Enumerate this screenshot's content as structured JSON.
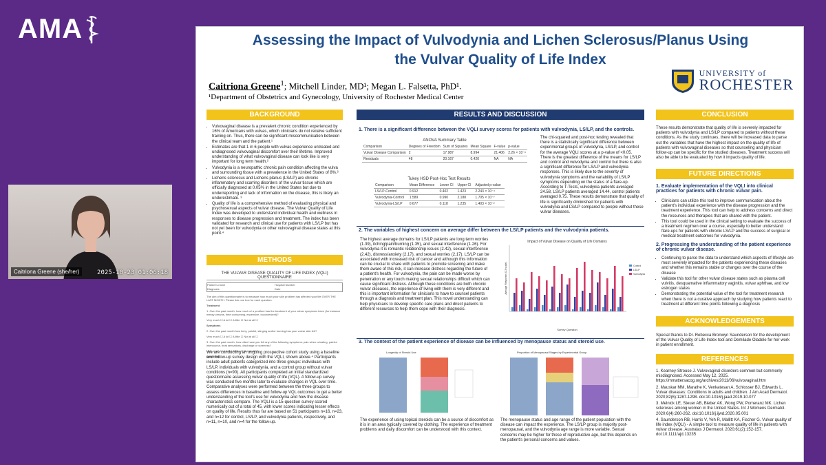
{
  "logo": {
    "text": "AMA"
  },
  "video": {
    "name": "Caitriona Greene (she/her)",
    "timestamp": "2025-10-23  01:06:18"
  },
  "poster": {
    "title_line1": "Assessing the Impact of Vulvodynia and Lichen Sclerosus/Planus Using",
    "title_line2": "the Vulvar Quality of Life Index",
    "author_main": "Caitriona Greene",
    "authors_rest": "; Mitchell Linder, MD¹; Megan L. Falsetta, PhD¹.",
    "affiliation": "¹Department of Obstetrics and Gynecology, University of Rochester Medical Center",
    "university_top": "UNIVERSITY of",
    "university_name": "ROCHESTER",
    "background": {
      "heading": "BACKGROUND",
      "bullets": [
        "Vulvovaginal disease is a prevalent chronic condition experienced by 16% of Americans with vulvas, which clinicians do not receive sufficient training on. Thus, there can be significant miscommunication between the clinical team and the patient.¹",
        "Estimates are that 1 in 6 people with vulvas experience untreated and undiagnosed vulvovaginal discomfort over their lifetime. Improved understanding of what vulvovaginal disease can look like is very important for long term health.²",
        "Vulvodynia is a neuropathic chronic pain condition affecting the vulva and surrounding tissue with a prevalence in the United States of 8%.²",
        "Lichens sclerosus and Lichens planus (LS/LP) are chronic inflammatory and scarring disorders of the vulvar tissue which are officially diagnosed at 0.05% in the United States but due to underreporting and lack of information on the disease, this is likely an underestimate. ³",
        "Quality of life is a comprehensive method of evaluating physical and psychosexual aspects of vulvar disease. The Vulvar Quality of Life Index was developed to understand individual health and wellness in responses to disease progression and treatment. The index has been validated for research and clinical use for patients with LS/LP but has not yet been for vulvodynia or other vulvovaginal disease states at this point.⁴"
      ]
    },
    "methods": {
      "heading": "METHODS",
      "form_title": "THE VULVAR DISEASE QUALITY OF LIFE INDEX (VQLI) QUESTIONNAIRE",
      "form_fields": [
        "Patient's name",
        "Hospital Number",
        "Diagnosis",
        "Date"
      ],
      "form_intro": "The aim of this questionnaire is to measure how much your skin problem has affected your life OVER THE LAST MONTH. Please tick one box for each question.",
      "form_sections": [
        "Treatment",
        "Symptoms",
        "Emotions"
      ],
      "form_q1": "1. Over the past month, how much of a problem has the treatment of your vulvar symptoms been (for instance messy creams, time consuming, expensive, inconvenient)?",
      "form_q2": "2. Over the past month how itchy, painful, stinging and/or burning has your vulvar skin felt?",
      "form_q3": "3. Over the past month, how often have you felt any of the following symptoms: pain when urinating, painful intercourse, heat sensations, discharge or soreness?",
      "form_options": "Very much ☐     A lot ☐     A little ☐     Not at all ☐",
      "text": "We are conducting an ongoing prospective cohort study using a baseline and follow-up survey design with the VQLI, shown above.⁴ Participants include adult patients categorized into three groups: individuals with LS/LP, individuals with vulvodynia, and a control group without vulvar conditions (n=90). All participants completed an initial standardized questionnaire assessing vulvar quality of life (VQL). A follow-up survey was conducted five months later to evaluate changes in VQL over time. Comparative analyses were performed between the three groups to assess differences in baseline and follow-up VQL outcomes to get a better understanding of the tool's use for vulvodynia and how the disease characteristics compare. The VQLI is a 15-question survey scored numerically out of a total of 45, with lower scores indicating lesser effects on quality of life. Results thus far are based on 51 participants n=16, n=23, and n=12 for control, LS/LP, and vulvodynia patients, respectively, and n=11, n=10, and n=4 for the follow-up."
    },
    "results": {
      "heading": "RESULTS AND DISCUSSION",
      "h1": "1.  There is a significant difference between the VQLI survey scores for patients with vulvodynia, LS/LP, and the controls.",
      "anova_caption": "ANOVA Summary Table",
      "anova_headers": [
        "Comparison",
        "Degrees of Freedom",
        "Sum of Squares",
        "Mean Square",
        "F-value",
        "p-value"
      ],
      "anova_rows": [
        [
          "Vulvar Disease Comparison",
          "2",
          "17.987",
          "8.994",
          "21.406",
          "2.26 × 10⁻⁸"
        ],
        [
          "Residuals",
          "48",
          "20.167",
          "0.420",
          "NA",
          "NA"
        ]
      ],
      "tukey_caption": "Tukey HSD Post-Hoc Test Results",
      "tukey_headers": [
        "Comparison",
        "Mean Difference",
        "Lower CI",
        "Upper CI",
        "Adjusted p-value"
      ],
      "tukey_rows": [
        [
          "LS/LP-Control",
          "0.912",
          "0.402",
          "1.423",
          "2.243 × 10⁻⁴"
        ],
        [
          "Vulvodynia-Control",
          "1.589",
          "0.990",
          "2.188",
          "1.705 × 10⁻⁷"
        ],
        [
          "Vulvodynia-LS/LP",
          "0.677",
          "0.118",
          "1.235",
          "1.403 × 10⁻²"
        ]
      ],
      "text1": "The chi-squared and post-hoc testing revealed that there is a statistically significant difference between experimental groups of vulvodynia, LS/LP, and control for the average VQLI scores at a p-value of <0.05. There is the greatest difference of the means for LS/LP and control and vulvodynia and control but there is also a significant difference for LS/LP and vulvodynia responses. This is likely due to the severity of vulvodynia symptoms and the variability of LS/LP symptoms depending on the status of a flare-up. According to T-Tests, vulvodynia patients averaged 24.58, LS/LP patients averaged 14.44, control patients averaged 0.75. These results demonstrate that quality of life is significantly diminished for patients with vulvodynia and LS/LP compared to people without these vulvar diseases.",
      "h2": "2.  The variables of highest concern on average differ between the LS/LP patients and the vulvodynia patients.",
      "text2": "The highest average domains for LS/LP patients are long term worries (1.39), itching/pain/burning (1.35), and sexual interference (1.26). For vulvodynia it is romantic relationship issues (2.42), sexual interference (2.42), distress/anxiety (2.17), and sexual worries (2.17). LS/LP can be associated with increased risk of cancer and although this information can be crucial to share with patients to promote screening and make them aware of this risk, it can increase distress regarding the future of a patient's health. For vulvodynia, the pain can be made worse by penetration or any touch making sexual relationships difficult which can cause significant distress. Although these conditions are both chronic vulvar diseases, the experience of living with them is very different and this is important information for clinicians to have to counsel patients through a diagnosis and treatment plan. This novel understanding can help physicians to develop specific care plans and direct patients to different resources to help them cope with their diagnosis.",
      "chart1_title": "Impact of Vulvar Disease on Quality of Life Domains",
      "chart1_xlabel": "Survey Question",
      "chart1_ylabel": "Average Response (0-3 scale)",
      "chart1_legend": [
        "Control",
        "LS/LP",
        "Vulvodynia"
      ],
      "h3": "3.  The context of the patient experience of disease can be influenced by menopause status and steroid use.",
      "chart2_title": "Longevity of Steroid Use",
      "chart3_title": "Proportion of Menopausal Stages by Experimental Group",
      "text3a": "The experience of using topical steroids can be a source of discomfort as it is in an area typically covered by clothing. The experience of treatment problems and daily discomfort can be understood with this context.",
      "text3b": "The menopause status and age range of the patient population with the disease can impact the experience. The LS/LP group is majority post-menopausal, and the vulvodynia age range is more variable. Sexual concerns may be higher for those of reproductive age, but this depends on the patient's personal concerns and values."
    },
    "conclusion": {
      "heading": "CONCLUSION",
      "text": "These results demonstrate that quality of life is severely impacted for patients with vulvodynia and LS/LP compared to patients without these conditions. As the study continues, there will be increased data to parse out the variables that have the highest impact on the quality of life of patients with vulvovaginal diseases so that counseling and physician follow-up can be specific for the studied diseases. Treatment success will also be able to be evaluated by how it impacts quality of life."
    },
    "future": {
      "heading": "FUTURE DIRECTIONS",
      "h1": "1.  Evaluate implementation of the VQLI into clinical practices for patients with chronic vulvar pain.",
      "b1": [
        "Clinicians can utilize this tool to improve communication about the patient's individual experience with the disease progression and the treatment experience. This tool can help to address concerns and direct the resources and therapies that are shared with the patient.",
        "This tool could be used in the clinical setting to evaluate the success of a treatment regimen over a course, especially to better understand flare-ups for patients with chronic LS/LP and the success of surgical or medical treatment outcomes for vulvodynia."
      ],
      "h2": "2.  Progressing the understanding of the patient experience of chronic vulvar disease.",
      "b2": [
        "Continuing to parse the data to understand which aspects of lifestyle are most severely impacted for the patients experiencing these diseases and whether this remains stable or changes over the course of the disease",
        "Validate this tool for other vulvar disease states such as plasma cell vulvitis, desquamative inflammatory vaginitis, vulvar aphthae, and low estrogen states",
        "Demonstrating the potential value of the tool for treatment research when there is not a curative approach by studying how patients react to treatment at different time points following a diagnosis"
      ]
    },
    "acknowledgements": {
      "heading": "ACKNOWLEDGEMENTS",
      "text": "Special thanks to Dr. Rebecca Bronwyn Saunderson  for the development of the Vulvar Quality of Life Index tool and Demilade Oladele for her work in patient enrollment."
    },
    "references": {
      "heading": "REFERENCES",
      "items": [
        "1.  Kearney-Strouse J. Vulvovaginal disorders common but commonly misdiagnosed. Accessed May 12, 2025. https://mmattersacog.org/archives/2011/06/vulvovaginal.htm",
        "2.  Mauskar MM, Marathe K, Venkatesan A, Schlosser BJ, Edwards L. Vulvar diseases: Conditions in adults and children. J Am Acad Dermatol. 2020;82(6):1287-1298. doi:10.1016/j.jaad.2019.10.077",
        "3.  Melnick LE, Steuer AB, Bieber AK, Wong PW, Pomeranz MK. Lichen sclerosus among women in the United States. Int J Womens Dermatol. 2020;6(4):260-262. doi:10.1016/j.ijwd.2020.05.001",
        "4.  Saunderson RB, Harris V, Yeh R, Mallitt KA, Fischer G. Vulvar quality of life index (VQLI) - A simple tool to measure quality of life in patients with vulvar disease. Australas J Dermatol. 2020;61(2):152-157. doi:10.1111/ajd.13235"
      ]
    }
  }
}
